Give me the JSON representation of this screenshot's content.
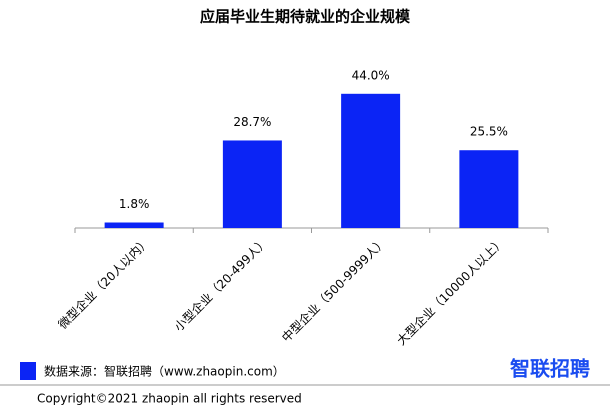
{
  "chart_data": {
    "type": "bar",
    "title": "应届毕业生期待就业的企业规模",
    "categories": [
      "微型企业（20人以内）",
      "小型企业（20-499人）",
      "中型企业（500-9999人）",
      "大型企业（10000人以上）"
    ],
    "values": [
      1.8,
      28.7,
      44,
      25.5
    ],
    "value_labels": [
      "1.8%",
      "28.7%",
      "44.0%",
      "25.5%"
    ],
    "color": "#0b24f5",
    "source": "数据来源：智联招聘（www.zhaopin.com）",
    "logo": "智联招聘",
    "copyright": "Copyright©2021 zhaopin all rights reserved"
  }
}
